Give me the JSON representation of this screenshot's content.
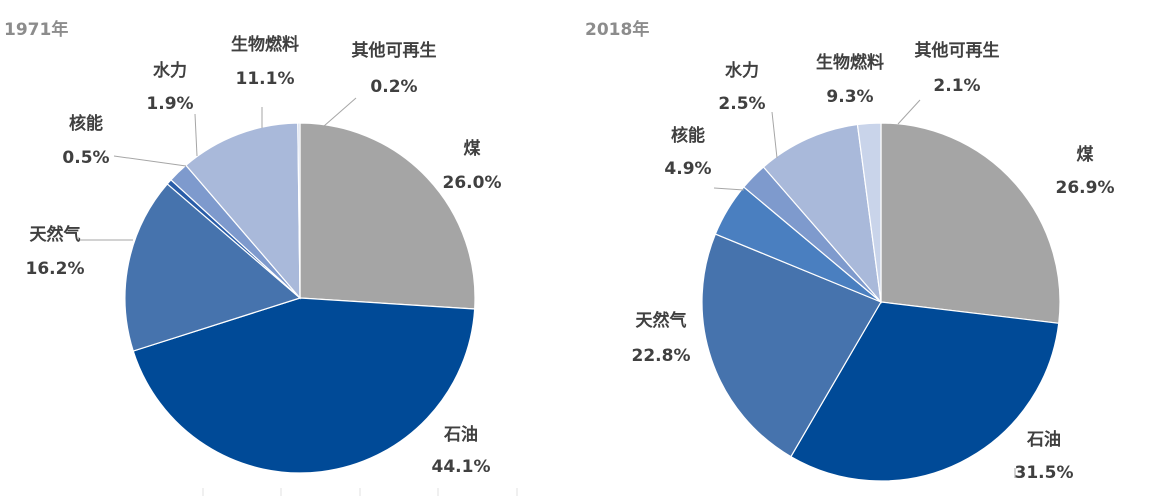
{
  "chart_data": [
    {
      "type": "pie",
      "title": "1971年",
      "categories": [
        "煤",
        "石油",
        "天然气",
        "核能",
        "水力",
        "生物燃料",
        "其他可再生"
      ],
      "values": [
        26.0,
        44.1,
        16.2,
        0.5,
        1.9,
        11.1,
        0.2
      ],
      "value_labels": [
        "26.0%",
        "44.1%",
        "16.2%",
        "0.5%",
        "1.9%",
        "11.1%",
        "0.2%"
      ],
      "colors": [
        "#a5a5a5",
        "#004a97",
        "#4673ad",
        "#2a5da8",
        "#7e9acd",
        "#a9b9da",
        "#c9d4ea"
      ],
      "unit": "%"
    },
    {
      "type": "pie",
      "title": "2018年",
      "categories": [
        "煤",
        "石油",
        "天然气",
        "核能",
        "水力",
        "生物燃料",
        "其他可再生"
      ],
      "values": [
        26.9,
        31.5,
        22.8,
        4.9,
        2.5,
        9.3,
        2.1
      ],
      "value_labels": [
        "26.9%",
        "31.5%",
        "22.8%",
        "4.9%",
        "2.5%",
        "9.3%",
        "2.1%"
      ],
      "colors": [
        "#a5a5a5",
        "#004a97",
        "#4673ad",
        "#4a7fc0",
        "#7e9acd",
        "#a9b9da",
        "#c9d4ea"
      ],
      "unit": "%"
    }
  ]
}
